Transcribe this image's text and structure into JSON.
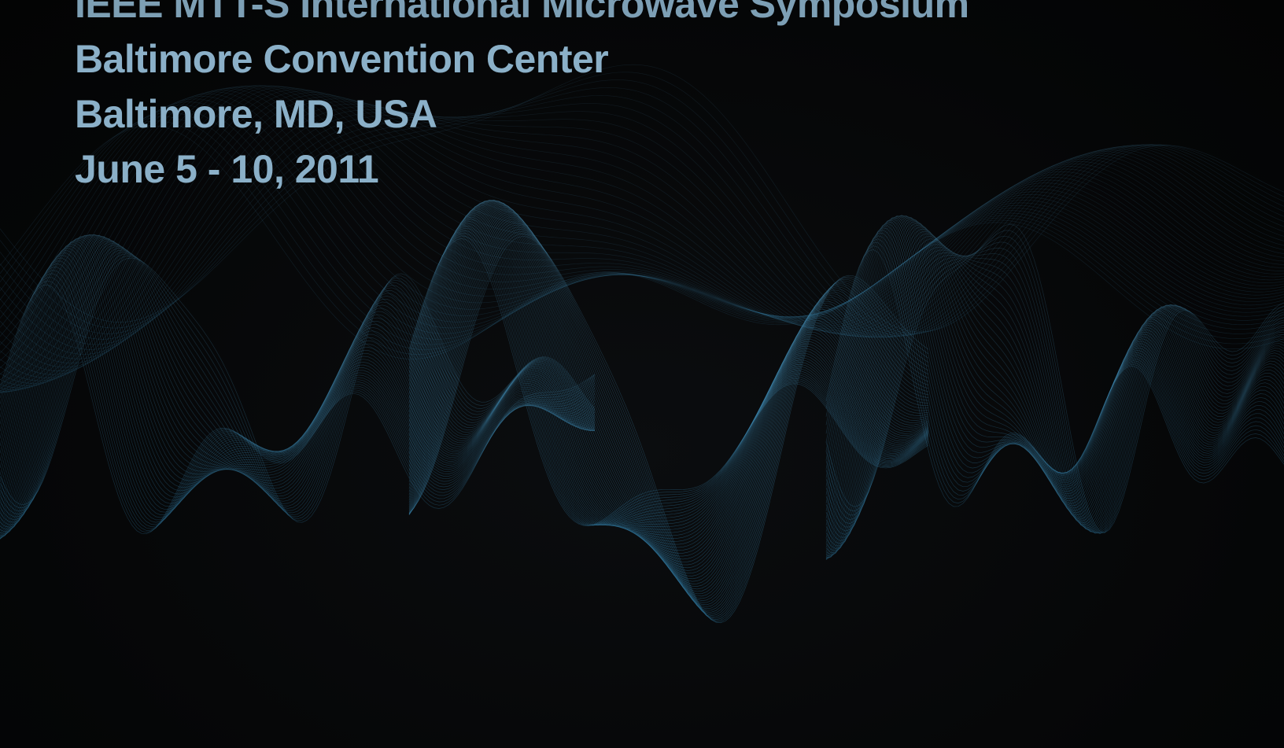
{
  "header": {
    "title_partial": "IEEE MTT-S International Microwave Symposium",
    "venue": "Baltimore Convention Center",
    "city": "Baltimore, MD, USA",
    "dates": "June 5 - 10, 2011"
  },
  "colors": {
    "background": "#050607",
    "text": "#8bb0c8",
    "wave": "#3a7fa6"
  }
}
